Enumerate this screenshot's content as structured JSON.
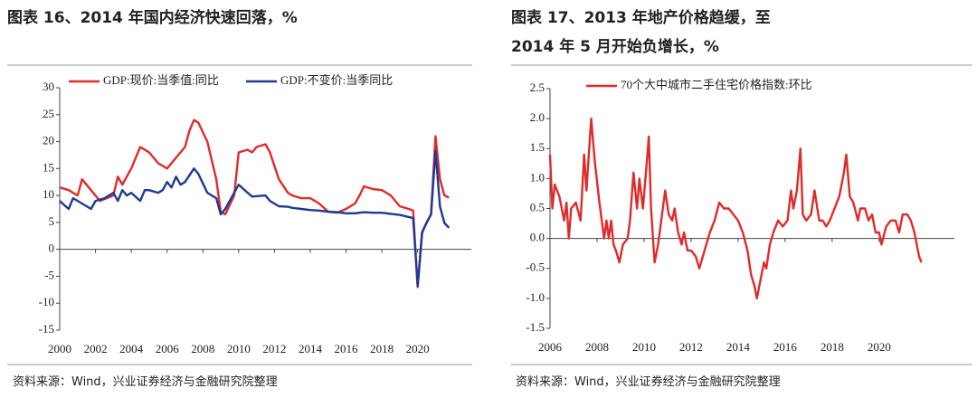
{
  "chart_data": [
    {
      "type": "line",
      "title": "图表 16、2014 年国内经济快速回落，%",
      "source": "资料来源：Wind，兴业证券经济与金融研究院整理",
      "xlim": [
        2000,
        2023
      ],
      "xticks": [
        2000,
        2002,
        2004,
        2006,
        2008,
        2010,
        2012,
        2014,
        2016,
        2018,
        2020
      ],
      "ylim": [
        -15,
        30
      ],
      "yticks": [
        30,
        25,
        20,
        15,
        10,
        5,
        0,
        -5,
        -10,
        -15
      ],
      "series": [
        {
          "name": "GDP:现价:当季值:同比",
          "color": "#e02b2b",
          "x": [
            2000,
            2000.5,
            2001,
            2001.25,
            2001.75,
            2002.25,
            2003,
            2003.25,
            2003.5,
            2004,
            2004.5,
            2005,
            2005.5,
            2006,
            2006.5,
            2007,
            2007.25,
            2007.5,
            2007.75,
            2008.25,
            2008.75,
            2009,
            2009.25,
            2009.75,
            2010,
            2010.5,
            2010.75,
            2011,
            2011.5,
            2011.75,
            2012.25,
            2012.75,
            2013,
            2013.5,
            2014,
            2014.5,
            2015,
            2015.5,
            2016,
            2016.5,
            2016.75,
            2017,
            2017.5,
            2018,
            2018.5,
            2018.75,
            2019,
            2019.5,
            2019.75,
            2020,
            2020.25,
            2020.5,
            2020.75,
            2021,
            2021.25,
            2021.5,
            2021.75
          ],
          "values": [
            11.5,
            11,
            10,
            13,
            11,
            9,
            10,
            13.5,
            12,
            15,
            19,
            18,
            16,
            15,
            17,
            19,
            22,
            24,
            23.5,
            20,
            13,
            7,
            6.5,
            10,
            18,
            18.5,
            18,
            19,
            19.5,
            18,
            13,
            10.5,
            10,
            9.5,
            9.5,
            8.5,
            7,
            6.8,
            7.5,
            8.5,
            10,
            11.7,
            11.2,
            11,
            10,
            9,
            8,
            7.5,
            7.2,
            -7,
            3,
            5,
            6.5,
            21,
            13,
            10,
            9.6
          ]
        },
        {
          "name": "GDP:不变价:当季同比",
          "color": "#1f3a93",
          "x": [
            2000,
            2000.5,
            2000.75,
            2001.5,
            2001.75,
            2002,
            2002.5,
            2003,
            2003.25,
            2003.5,
            2003.75,
            2004,
            2004.5,
            2004.75,
            2005,
            2005.5,
            2005.75,
            2006,
            2006.25,
            2006.5,
            2006.75,
            2007,
            2007.5,
            2007.75,
            2008.25,
            2008.75,
            2009,
            2009.25,
            2009.75,
            2010,
            2010.5,
            2010.75,
            2011.5,
            2011.75,
            2012.25,
            2012.75,
            2013,
            2013.5,
            2014,
            2014.5,
            2015,
            2015.5,
            2016,
            2016.5,
            2017,
            2017.5,
            2018,
            2018.5,
            2019,
            2019.5,
            2019.75,
            2020,
            2020.25,
            2020.5,
            2020.75,
            2021,
            2021.25,
            2021.5,
            2021.75
          ],
          "values": [
            9,
            7.5,
            9.5,
            8,
            7.5,
            9,
            9.5,
            10.5,
            9,
            11,
            10,
            10.5,
            9,
            11,
            11,
            10.5,
            11,
            12.5,
            11.5,
            13.5,
            12,
            12.5,
            15,
            14,
            10.5,
            9.5,
            6.5,
            7.5,
            10.5,
            12,
            10.5,
            9.8,
            10,
            9,
            8,
            7.9,
            7.7,
            7.5,
            7.3,
            7.2,
            7,
            6.9,
            6.7,
            6.7,
            6.9,
            6.8,
            6.8,
            6.6,
            6.4,
            6,
            5.8,
            -6.8,
            3.2,
            4.9,
            6.5,
            18.3,
            7.9,
            4.9,
            4
          ]
        }
      ]
    },
    {
      "type": "line",
      "title": "图表 17、2013 年地产价格趋缓，至 2014 年 5 月开始负增长，%",
      "source": "资料来源：Wind，兴业证券经济与金融研究院整理",
      "xlim": [
        2006,
        2023.2
      ],
      "xticks": [
        2006,
        2008,
        2010,
        2012,
        2014,
        2016,
        2018,
        2020
      ],
      "ylim": [
        -1.5,
        2.5
      ],
      "yticks": [
        2.5,
        {
          "value": 2,
          "label": "2.0"
        },
        1.5,
        {
          "value": 1,
          "label": "1.0"
        },
        0.5,
        {
          "value": 0,
          "label": "0.0"
        },
        -0.5,
        {
          "value": -1,
          "label": "-1.0"
        },
        -1.5
      ],
      "series": [
        {
          "name": "70个大中城市二手住宅价格指数:环比",
          "color": "#e02b2b",
          "x": [
            2006,
            2006.1,
            2006.2,
            2006.4,
            2006.6,
            2006.7,
            2006.8,
            2006.9,
            2007.1,
            2007.3,
            2007.45,
            2007.55,
            2007.75,
            2007.9,
            2008.1,
            2008.3,
            2008.4,
            2008.5,
            2008.6,
            2008.7,
            2008.8,
            2008.95,
            2009.1,
            2009.3,
            2009.4,
            2009.55,
            2009.7,
            2009.8,
            2009.95,
            2010.1,
            2010.2,
            2010.3,
            2010.45,
            2010.6,
            2010.8,
            2010.9,
            2011.05,
            2011.2,
            2011.3,
            2011.45,
            2011.6,
            2011.7,
            2011.85,
            2012,
            2012.2,
            2012.35,
            2012.5,
            2012.65,
            2012.8,
            2013,
            2013.2,
            2013.4,
            2013.6,
            2013.8,
            2014,
            2014.2,
            2014.4,
            2014.55,
            2014.7,
            2014.8,
            2014.95,
            2015.1,
            2015.2,
            2015.35,
            2015.5,
            2015.7,
            2015.9,
            2016.1,
            2016.25,
            2016.35,
            2016.5,
            2016.65,
            2016.75,
            2016.9,
            2017.1,
            2017.25,
            2017.45,
            2017.6,
            2017.75,
            2017.9,
            2018.1,
            2018.3,
            2018.5,
            2018.6,
            2018.75,
            2018.9,
            2019.1,
            2019.2,
            2019.4,
            2019.55,
            2019.7,
            2019.85,
            2020,
            2020.1,
            2020.3,
            2020.5,
            2020.7,
            2020.85,
            2021,
            2021.2,
            2021.35,
            2021.5,
            2021.6,
            2021.7,
            2021.8
          ],
          "values": [
            1.4,
            0.5,
            0.9,
            0.7,
            0.3,
            0.6,
            0,
            0.5,
            0.6,
            0.3,
            1.4,
            0.8,
            2,
            1.3,
            0.6,
            0,
            0.3,
            0,
            0.3,
            -0.1,
            -0.2,
            -0.4,
            -0.1,
            0,
            0.3,
            1.1,
            0.5,
            1,
            0.5,
            1.2,
            1.7,
            0.5,
            -0.4,
            -0.1,
            0.5,
            0.8,
            0.4,
            0.3,
            0.5,
            0.1,
            -0.1,
            0.1,
            -0.2,
            -0.2,
            -0.3,
            -0.5,
            -0.3,
            -0.1,
            0.1,
            0.3,
            0.6,
            0.5,
            0.5,
            0.4,
            0.3,
            0.1,
            -0.2,
            -0.6,
            -0.8,
            -1,
            -0.7,
            -0.4,
            -0.5,
            -0.1,
            0.1,
            0.3,
            0.2,
            0.3,
            0.8,
            0.5,
            0.8,
            1.5,
            0.4,
            0.3,
            0.4,
            0.8,
            0.3,
            0.3,
            0.2,
            0.3,
            0.5,
            0.7,
            1.1,
            1.4,
            0.7,
            0.6,
            0.3,
            0.5,
            0.5,
            0.3,
            0.4,
            0.1,
            0.1,
            -0.1,
            0.2,
            0.3,
            0.3,
            0.1,
            0.4,
            0.4,
            0.3,
            0.1,
            -0.1,
            -0.3,
            -0.4
          ]
        }
      ]
    }
  ]
}
